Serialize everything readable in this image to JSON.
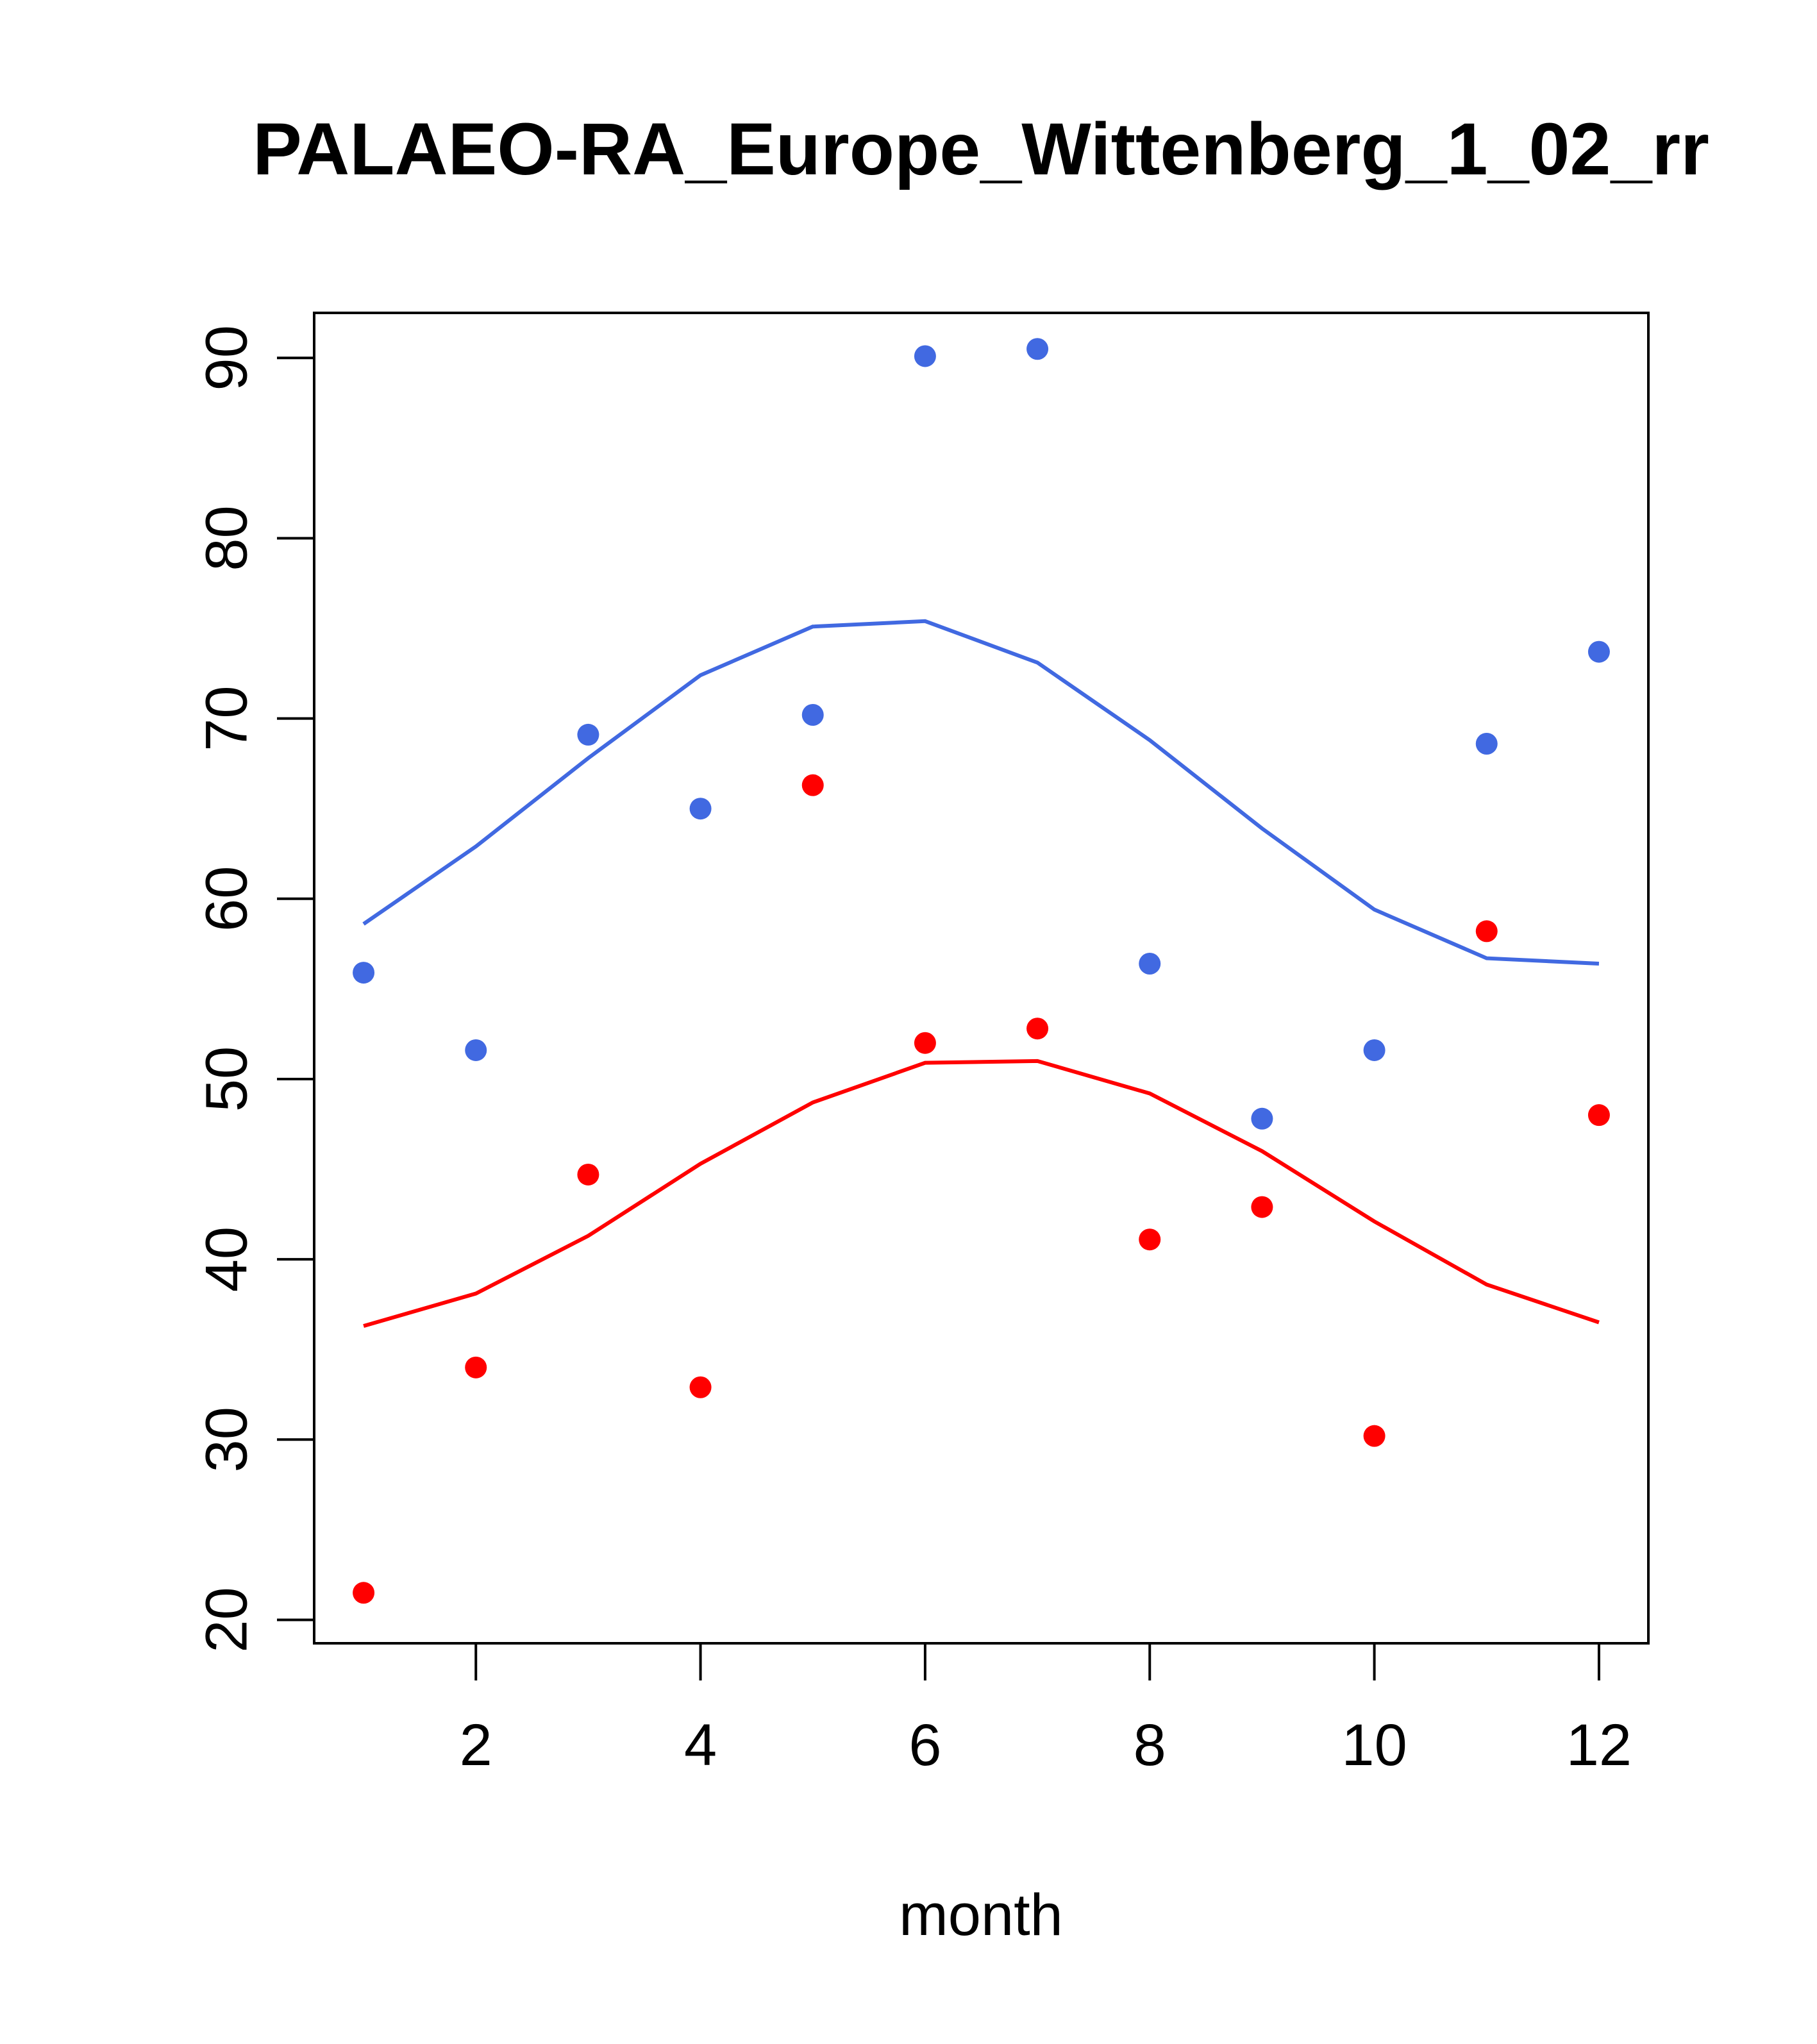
{
  "chart_data": {
    "type": "scatter",
    "title": "PALAEO-RA_Europe_Wittenberg_1_02_rr",
    "xlabel": "month",
    "ylabel": "",
    "xlim": [
      0.56,
      12.44
    ],
    "ylim": [
      18.7,
      92.5
    ],
    "xticks": [
      2,
      4,
      6,
      8,
      10,
      12
    ],
    "yticks": [
      20,
      30,
      40,
      50,
      60,
      70,
      80,
      90
    ],
    "x": [
      1,
      2,
      3,
      4,
      5,
      6,
      7,
      8,
      9,
      10,
      11,
      12
    ],
    "series": [
      {
        "name": "blue points",
        "kind": "points",
        "color": "#4169E1",
        "values": [
          55.9,
          51.6,
          69.1,
          65.0,
          70.2,
          90.1,
          90.5,
          56.4,
          47.8,
          51.6,
          68.6,
          73.7
        ]
      },
      {
        "name": "blue line",
        "kind": "line",
        "color": "#4169E1",
        "values": [
          58.6,
          62.9,
          67.8,
          72.4,
          75.1,
          75.4,
          73.1,
          68.8,
          63.9,
          59.4,
          56.7,
          56.4
        ]
      },
      {
        "name": "red points",
        "kind": "points",
        "color": "#FF0000",
        "values": [
          21.5,
          34.0,
          44.7,
          32.9,
          66.3,
          52.0,
          52.8,
          41.1,
          42.9,
          30.2,
          58.2,
          48.0
        ]
      },
      {
        "name": "red line",
        "kind": "line",
        "color": "#FF0000",
        "values": [
          36.3,
          38.1,
          41.3,
          45.3,
          48.7,
          50.9,
          51.0,
          49.2,
          46.0,
          42.1,
          38.6,
          36.5
        ]
      }
    ]
  }
}
